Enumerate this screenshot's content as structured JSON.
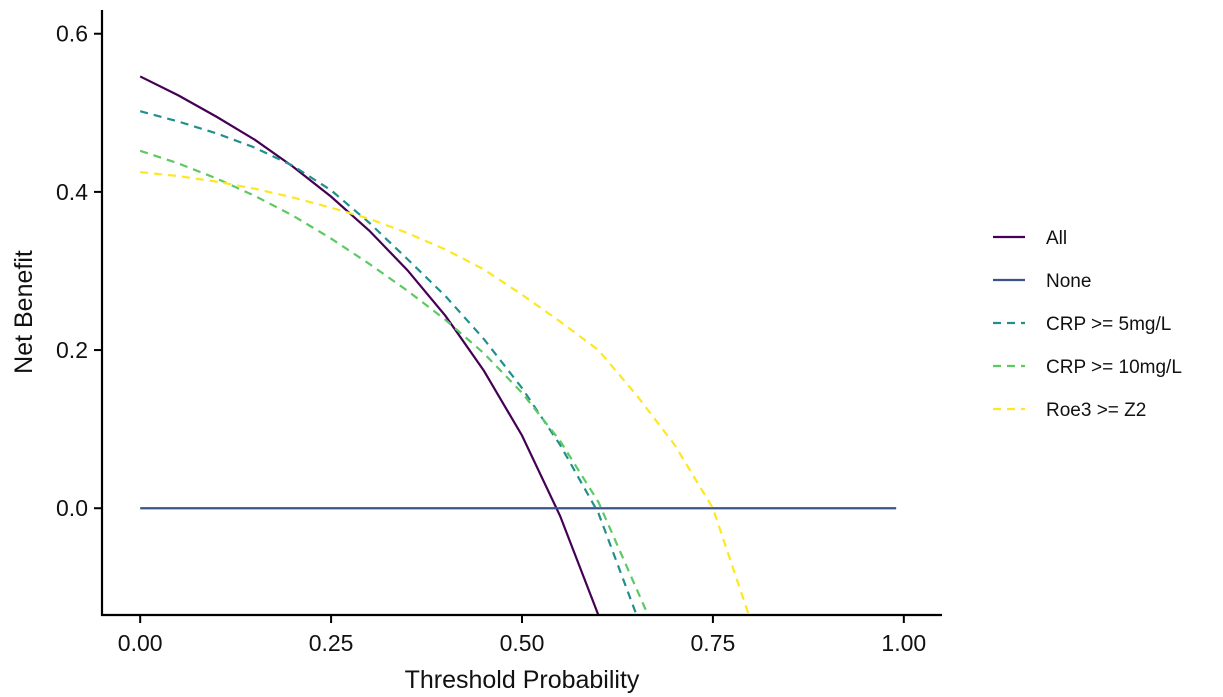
{
  "chart_data": {
    "type": "line",
    "title": "",
    "xlabel": "Threshold Probability",
    "ylabel": "Net Benefit",
    "xlim": [
      -0.05,
      1.05
    ],
    "ylim": [
      -0.135,
      0.63
    ],
    "x_ticks": [
      0.0,
      0.25,
      0.5,
      0.75,
      1.0
    ],
    "x_tick_labels": [
      "0.00",
      "0.25",
      "0.50",
      "0.75",
      "1.00"
    ],
    "y_ticks": [
      0.0,
      0.2,
      0.4,
      0.6
    ],
    "y_tick_labels": [
      "0.0",
      "0.2",
      "0.4",
      "0.6"
    ],
    "grid": false,
    "legend_position": "right",
    "series": [
      {
        "name": "All",
        "color": "#440154",
        "dash": "solid",
        "x": [
          0.0,
          0.05,
          0.1,
          0.15,
          0.2,
          0.25,
          0.3,
          0.35,
          0.4,
          0.45,
          0.5,
          0.55,
          0.6
        ],
        "y": [
          0.546,
          0.522,
          0.495,
          0.466,
          0.432,
          0.394,
          0.351,
          0.301,
          0.243,
          0.174,
          0.092,
          -0.01,
          -0.135
        ]
      },
      {
        "name": "None",
        "color": "#3b528b",
        "dash": "solid",
        "x": [
          0.0,
          0.99
        ],
        "y": [
          0.0,
          0.0
        ]
      },
      {
        "name": "CRP >= 5mg/L",
        "color": "#21908c",
        "dash": "dashed",
        "x": [
          0.0,
          0.05,
          0.1,
          0.15,
          0.2,
          0.25,
          0.3,
          0.35,
          0.4,
          0.45,
          0.5,
          0.55,
          0.6,
          0.65
        ],
        "y": [
          0.502,
          0.489,
          0.474,
          0.456,
          0.433,
          0.402,
          0.361,
          0.315,
          0.268,
          0.214,
          0.152,
          0.08,
          -0.006,
          -0.135
        ]
      },
      {
        "name": "CRP >= 10mg/L",
        "color": "#5dc963",
        "dash": "dashed",
        "x": [
          0.0,
          0.05,
          0.1,
          0.15,
          0.2,
          0.25,
          0.3,
          0.35,
          0.4,
          0.45,
          0.5,
          0.55,
          0.6,
          0.665
        ],
        "y": [
          0.452,
          0.436,
          0.417,
          0.395,
          0.37,
          0.341,
          0.309,
          0.275,
          0.238,
          0.196,
          0.146,
          0.085,
          0.008,
          -0.135
        ]
      },
      {
        "name": "Roe3 >= Z2",
        "color": "#fde725",
        "dash": "dashed",
        "x": [
          0.0,
          0.05,
          0.1,
          0.15,
          0.2,
          0.25,
          0.3,
          0.35,
          0.4,
          0.45,
          0.5,
          0.55,
          0.6,
          0.65,
          0.7,
          0.75,
          0.797
        ],
        "y": [
          0.425,
          0.42,
          0.413,
          0.404,
          0.393,
          0.38,
          0.366,
          0.348,
          0.327,
          0.302,
          0.27,
          0.236,
          0.2,
          0.143,
          0.08,
          0.0,
          -0.135
        ]
      }
    ]
  }
}
